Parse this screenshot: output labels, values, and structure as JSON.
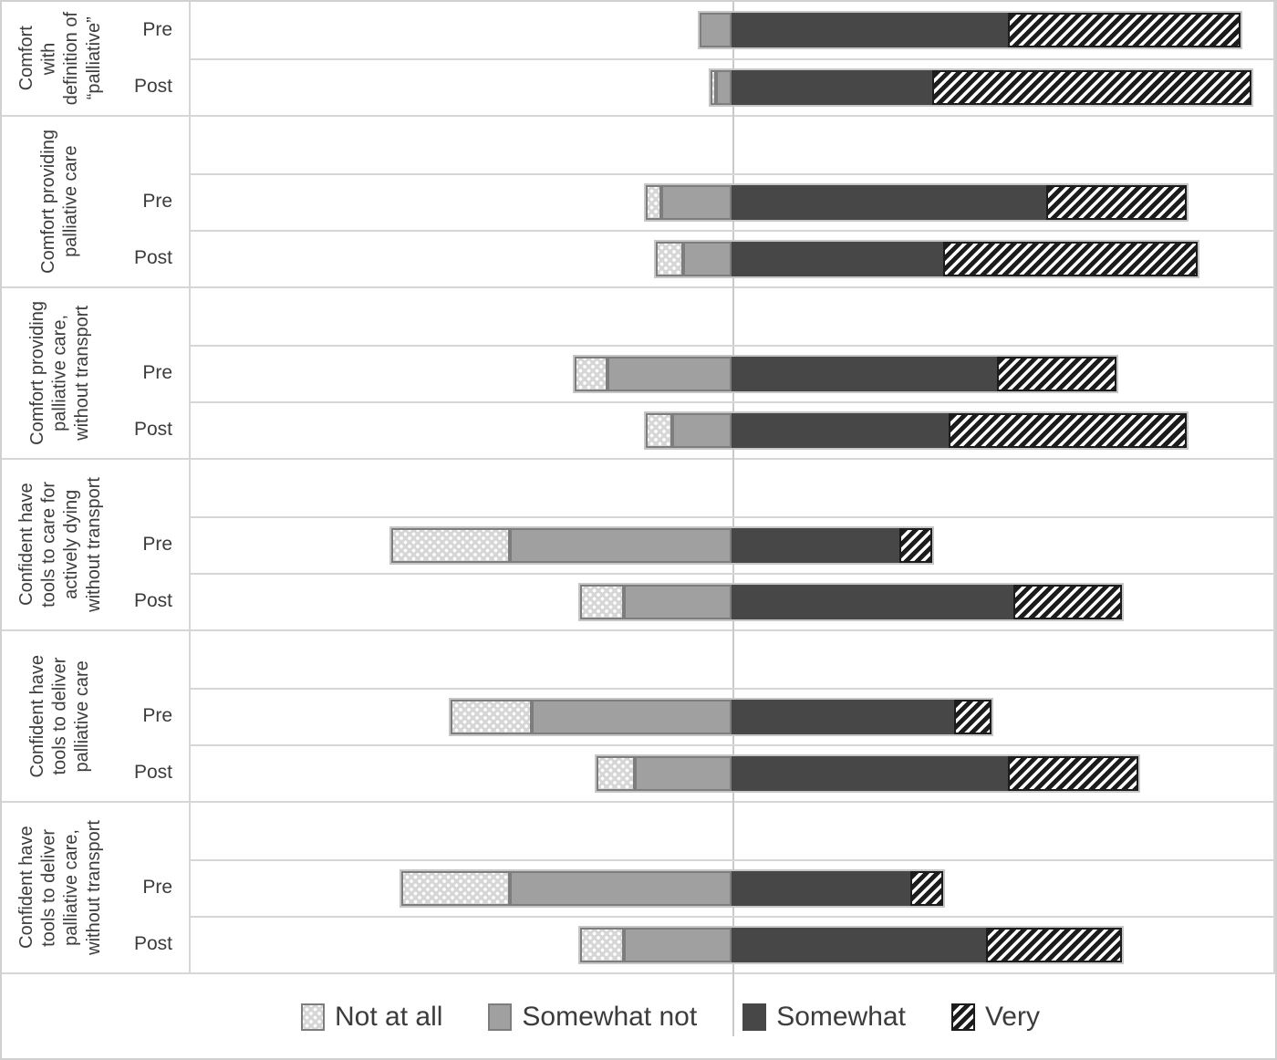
{
  "chart_data": {
    "type": "bar",
    "subtype": "diverging_stacked_100pct_likert",
    "title": "",
    "xlabel": "",
    "ylabel": "",
    "legend_position": "bottom",
    "axis": {
      "center_value": 0,
      "range_pct": [
        -100,
        100
      ],
      "center_x_fraction_of_plot": 0.5,
      "gridlines": "row-and-category-separators"
    },
    "series": [
      {
        "key": "not_at_all",
        "label": "Not at all",
        "pattern": "white-dots-on-light-gray",
        "fill": "#d6d6d6",
        "border": "#7d7d7d"
      },
      {
        "key": "somewhat_not",
        "label": "Somewhat not",
        "pattern": "solid",
        "fill": "#a0a0a0",
        "border": "#7d7d7d"
      },
      {
        "key": "somewhat",
        "label": "Somewhat",
        "pattern": "solid",
        "fill": "#474747",
        "border": "#474747"
      },
      {
        "key": "very",
        "label": "Very",
        "pattern": "black-diagonal-stripes",
        "fill": "#1c1c1c",
        "stripe_bg": "#ffffff",
        "border": "#1c1c1c"
      }
    ],
    "groups": [
      {
        "label": "Comfort\nwith\ndefinition of\n“palliative”",
        "spacer_row": false,
        "rows": [
          {
            "label": "Pre",
            "values_pct": [
              0,
              6,
              51,
              43
            ]
          },
          {
            "label": "Post",
            "values_pct": [
              1,
              3,
              37,
              59
            ]
          }
        ]
      },
      {
        "label": "Comfort providing\npalliative care",
        "spacer_row": true,
        "rows": [
          {
            "label": "Pre",
            "values_pct": [
              3,
              13,
              58,
              26
            ]
          },
          {
            "label": "Post",
            "values_pct": [
              5,
              9,
              39,
              47
            ]
          }
        ]
      },
      {
        "label": "Comfort providing\npalliative care,\nwithout transport",
        "spacer_row": true,
        "rows": [
          {
            "label": "Pre",
            "values_pct": [
              6,
              23,
              49,
              22
            ]
          },
          {
            "label": "Post",
            "values_pct": [
              5,
              11,
              40,
              44
            ]
          }
        ]
      },
      {
        "label": "Confident have\ntools to care for\nactively dying\nwithout transport",
        "spacer_row": true,
        "rows": [
          {
            "label": "Pre",
            "values_pct": [
              22,
              41,
              31,
              6
            ]
          },
          {
            "label": "Post",
            "values_pct": [
              8,
              20,
              52,
              20
            ]
          }
        ]
      },
      {
        "label": "Confident have\ntools to deliver\npalliative care",
        "spacer_row": true,
        "rows": [
          {
            "label": "Pre",
            "values_pct": [
              15,
              37,
              41,
              7
            ]
          },
          {
            "label": "Post",
            "values_pct": [
              7,
              18,
              51,
              24
            ]
          }
        ]
      },
      {
        "label": "Confident have\ntools to deliver\npalliative care,\nwithout transport",
        "spacer_row": true,
        "rows": [
          {
            "label": "Pre",
            "values_pct": [
              20,
              41,
              33,
              6
            ]
          },
          {
            "label": "Post",
            "values_pct": [
              8,
              20,
              47,
              25
            ]
          }
        ]
      }
    ],
    "colors": {
      "gridline": "#d6d6d6",
      "axis_line": "#c9c9c9",
      "text": "#3c3c3c",
      "bar_outline": "#c6c6c6",
      "background": "#ffffff"
    }
  }
}
